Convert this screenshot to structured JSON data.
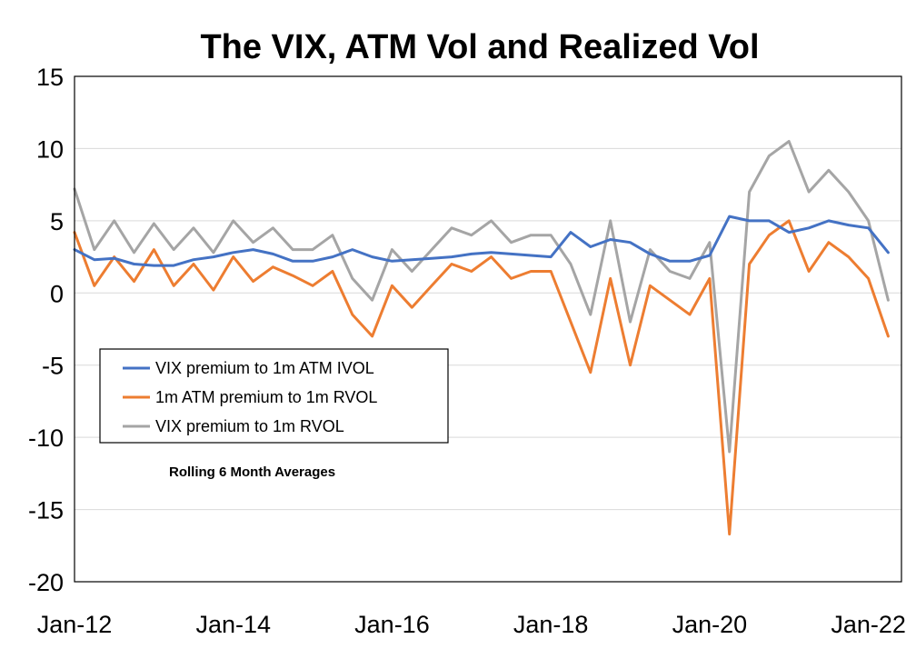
{
  "chart_data": {
    "type": "line",
    "title": "The VIX, ATM Vol and Realized Vol",
    "xlabel": "",
    "ylabel": "",
    "xlim": [
      "2012-01",
      "2022-06"
    ],
    "ylim": [
      -20,
      15
    ],
    "x_ticks": [
      "Jan-12",
      "Jan-14",
      "Jan-16",
      "Jan-18",
      "Jan-20",
      "Jan-22"
    ],
    "y_ticks": [
      15,
      10,
      5,
      0,
      -5,
      -10,
      -15,
      -20
    ],
    "grid": "horizontal",
    "legend_position": "left-middle",
    "annotation": "Rolling 6 Month Averages",
    "x": [
      "2012-01",
      "2012-04",
      "2012-07",
      "2012-10",
      "2013-01",
      "2013-04",
      "2013-07",
      "2013-10",
      "2014-01",
      "2014-04",
      "2014-07",
      "2014-10",
      "2015-01",
      "2015-04",
      "2015-07",
      "2015-10",
      "2016-01",
      "2016-04",
      "2016-07",
      "2016-10",
      "2017-01",
      "2017-04",
      "2017-07",
      "2017-10",
      "2018-01",
      "2018-04",
      "2018-07",
      "2018-10",
      "2019-01",
      "2019-04",
      "2019-07",
      "2019-10",
      "2020-01",
      "2020-04",
      "2020-07",
      "2020-10",
      "2021-01",
      "2021-04",
      "2021-07",
      "2021-10",
      "2022-01",
      "2022-04"
    ],
    "series": [
      {
        "name": "VIX premium to 1m ATM IVOL",
        "color": "#4472C4",
        "values": [
          3.0,
          2.3,
          2.4,
          2.0,
          1.9,
          1.9,
          2.3,
          2.5,
          2.8,
          3.0,
          2.7,
          2.2,
          2.2,
          2.5,
          3.0,
          2.5,
          2.2,
          2.3,
          2.4,
          2.5,
          2.7,
          2.8,
          2.7,
          2.6,
          2.5,
          4.2,
          3.2,
          3.7,
          3.5,
          2.7,
          2.2,
          2.2,
          2.6,
          5.3,
          5.0,
          5.0,
          4.2,
          4.5,
          5.0,
          4.7,
          4.5,
          2.8
        ]
      },
      {
        "name": "1m ATM premium to 1m RVOL",
        "color": "#ED7D31",
        "values": [
          4.2,
          0.5,
          2.5,
          0.8,
          3.0,
          0.5,
          2.0,
          0.2,
          2.5,
          0.8,
          1.8,
          1.2,
          0.5,
          1.5,
          -1.5,
          -3.0,
          0.5,
          -1.0,
          0.5,
          2.0,
          1.5,
          2.5,
          1.0,
          1.5,
          1.5,
          -2.0,
          -5.5,
          1.0,
          -5.0,
          0.5,
          -0.5,
          -1.5,
          1.0,
          -16.7,
          2.0,
          4.0,
          5.0,
          1.5,
          3.5,
          2.5,
          1.0,
          -3.0
        ]
      },
      {
        "name": "VIX premium to 1m RVOL",
        "color": "#A5A5A5",
        "values": [
          7.2,
          3.0,
          5.0,
          2.8,
          4.8,
          3.0,
          4.5,
          2.8,
          5.0,
          3.5,
          4.5,
          3.0,
          3.0,
          4.0,
          1.0,
          -0.5,
          3.0,
          1.5,
          3.0,
          4.5,
          4.0,
          5.0,
          3.5,
          4.0,
          4.0,
          2.0,
          -1.5,
          5.0,
          -2.0,
          3.0,
          1.5,
          1.0,
          3.5,
          -11.0,
          7.0,
          9.5,
          10.5,
          7.0,
          8.5,
          7.0,
          5.0,
          -0.5
        ]
      }
    ]
  }
}
